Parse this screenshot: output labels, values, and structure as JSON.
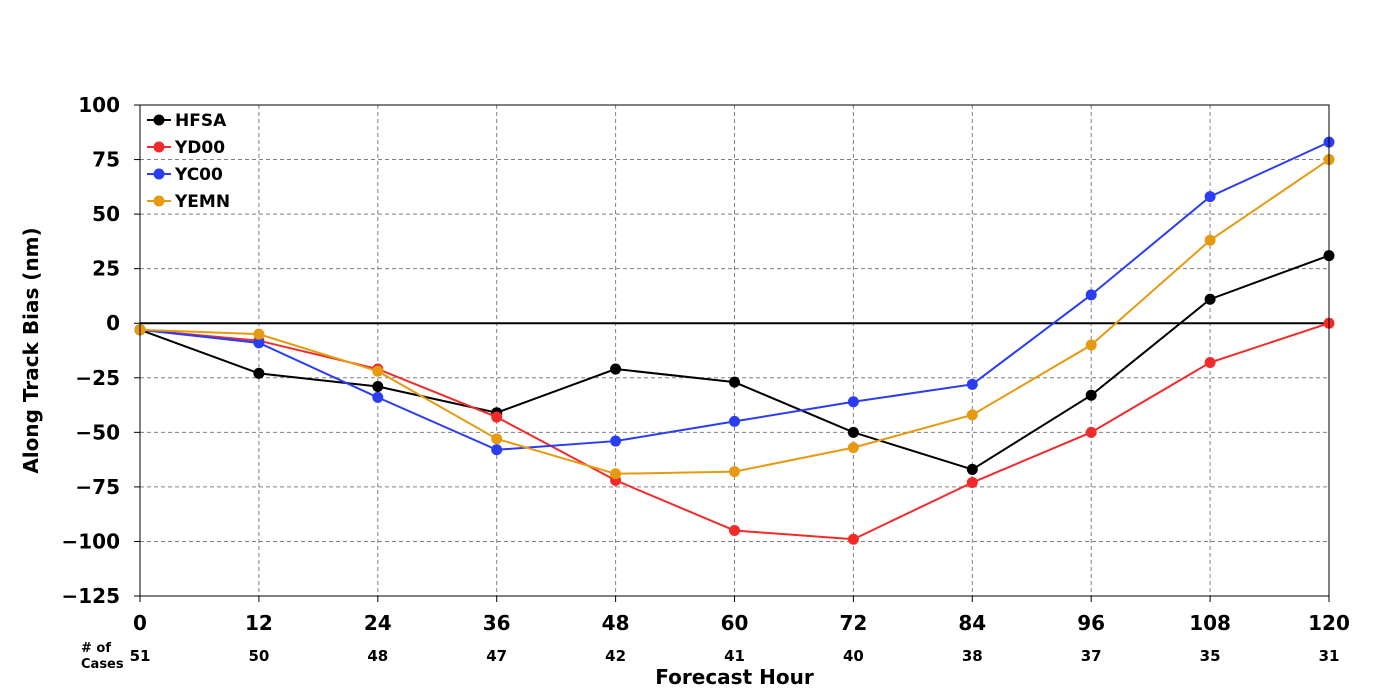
{
  "chart_data": {
    "type": "line",
    "xlabel": "Forecast Hour",
    "ylabel": "Along Track Bias (nm)",
    "x": [
      0,
      12,
      24,
      36,
      48,
      60,
      72,
      84,
      96,
      108,
      120
    ],
    "x_tick_labels": [
      "0",
      "12",
      "24",
      "36",
      "48",
      "60",
      "72",
      "84",
      "96",
      "108",
      "120"
    ],
    "xlim": [
      0,
      120
    ],
    "ylim": [
      -125,
      100
    ],
    "y_ticks": [
      100,
      75,
      50,
      25,
      0,
      -25,
      -50,
      -75,
      -100,
      -125
    ],
    "y_tick_labels": [
      "100",
      "75",
      "50",
      "25",
      "0",
      "−25",
      "−50",
      "−75",
      "−100",
      "−125"
    ],
    "grid": true,
    "grid_style": "dashed",
    "zero_line": true,
    "legend_position": "top-left",
    "cases_title": [
      "# of",
      "Cases"
    ],
    "cases": [
      "51",
      "50",
      "48",
      "47",
      "42",
      "41",
      "40",
      "38",
      "37",
      "35",
      "31"
    ],
    "series": [
      {
        "name": "HFSA",
        "color": "#000000",
        "values": [
          -3,
          -23,
          -29,
          -41,
          -21,
          -27,
          -50,
          -67,
          -33,
          11,
          31
        ]
      },
      {
        "name": "YD00",
        "color": "#f22a2a",
        "values": [
          -3,
          -8,
          -21,
          -43,
          -72,
          -95,
          -99,
          -73,
          -50,
          -18,
          0
        ]
      },
      {
        "name": "YC00",
        "color": "#2a3df2",
        "values": [
          -3,
          -9,
          -34,
          -58,
          -54,
          -45,
          -36,
          -28,
          13,
          58,
          83
        ]
      },
      {
        "name": "YEMN",
        "color": "#e69a10",
        "values": [
          -3,
          -5,
          -22,
          -53,
          -69,
          -68,
          -57,
          -42,
          -10,
          38,
          75
        ]
      }
    ]
  }
}
